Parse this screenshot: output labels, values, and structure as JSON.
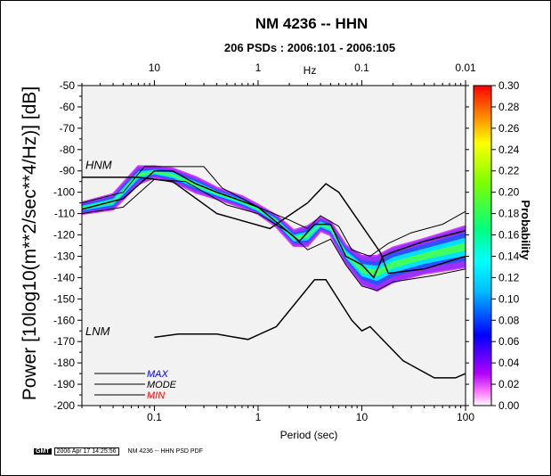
{
  "title": "NM 4236 -- HHN",
  "subtitle": "206 PSDs : 2006:101 - 2006:105",
  "footer": {
    "logo": "GMT",
    "timestamp": "2006 Apr 17 14:25:56",
    "label": "NM 4236 -- HHN PSD PDF"
  },
  "colors": {
    "mode": "#000000",
    "max_label": "#0000ff",
    "min_label": "#ff0000",
    "noise_model": "#808080",
    "background": "#ffffff"
  },
  "chart_data": {
    "type": "heatmap",
    "xlabel": "Period (sec)",
    "ylabel": "Power [10log10(m**2/sec**4/Hz)] [dB]",
    "top_axis_label": "Hz",
    "colorbar_label": "Probability",
    "x_scale": "log",
    "xlim": [
      0.02,
      100
    ],
    "ylim": [
      -200,
      -50
    ],
    "x_ticks": [
      {
        "v": 0.1,
        "label": "0.1"
      },
      {
        "v": 1,
        "label": "1"
      },
      {
        "v": 10,
        "label": "10"
      },
      {
        "v": 100,
        "label": "100"
      }
    ],
    "y_ticks": [
      -50,
      -60,
      -70,
      -80,
      -90,
      -100,
      -110,
      -120,
      -130,
      -140,
      -150,
      -160,
      -170,
      -180,
      -190,
      -200
    ],
    "top_ticks": [
      {
        "period": 0.1,
        "label": "10"
      },
      {
        "period": 1,
        "label": "1"
      },
      {
        "period": 10,
        "label": "0.1"
      },
      {
        "period": 100,
        "label": "0.01"
      }
    ],
    "colorbar_ticks": [
      0.0,
      0.02,
      0.04,
      0.06,
      0.08,
      0.1,
      0.12,
      0.14,
      0.16,
      0.18,
      0.2,
      0.22,
      0.24,
      0.26,
      0.28,
      0.3
    ],
    "colorbar_range": [
      0,
      0.3
    ],
    "noise_models": [
      {
        "name": "HNM",
        "points": [
          [
            0.02,
            -93
          ],
          [
            0.07,
            -93
          ],
          [
            0.15,
            -95
          ],
          [
            0.4,
            -110
          ],
          [
            1.3,
            -117
          ],
          [
            3,
            -105
          ],
          [
            4.5,
            -96
          ],
          [
            6,
            -100
          ],
          [
            15,
            -128
          ],
          [
            18,
            -138
          ],
          [
            40,
            -136
          ],
          [
            100,
            -130
          ]
        ]
      },
      {
        "name": "LNM",
        "points": [
          [
            0.1,
            -168
          ],
          [
            0.17,
            -166.5
          ],
          [
            0.4,
            -166.5
          ],
          [
            0.8,
            -169
          ],
          [
            1.5,
            -163
          ],
          [
            3.5,
            -141
          ],
          [
            4.5,
            -141
          ],
          [
            8,
            -160
          ],
          [
            10,
            -165
          ],
          [
            12,
            -163
          ],
          [
            25,
            -179
          ],
          [
            50,
            -187
          ],
          [
            80,
            -187
          ],
          [
            100,
            -185
          ]
        ]
      }
    ],
    "series": [
      {
        "name": "MAX",
        "points": [
          [
            0.02,
            -105
          ],
          [
            0.05,
            -100
          ],
          [
            0.08,
            -88
          ],
          [
            0.12,
            -88
          ],
          [
            0.3,
            -88
          ],
          [
            0.45,
            -98
          ],
          [
            1,
            -107
          ],
          [
            2,
            -113
          ],
          [
            3,
            -117
          ],
          [
            4,
            -111
          ],
          [
            6,
            -116
          ],
          [
            8,
            -127
          ],
          [
            12,
            -130
          ],
          [
            18,
            -124
          ],
          [
            30,
            -119
          ],
          [
            60,
            -115
          ],
          [
            100,
            -109
          ]
        ]
      },
      {
        "name": "MODE",
        "points": [
          [
            0.02,
            -108
          ],
          [
            0.05,
            -103
          ],
          [
            0.1,
            -90
          ],
          [
            0.15,
            -90
          ],
          [
            0.25,
            -96
          ],
          [
            0.4,
            -100
          ],
          [
            0.6,
            -103
          ],
          [
            1,
            -107
          ],
          [
            1.5,
            -114
          ],
          [
            2.5,
            -123
          ],
          [
            3.5,
            -115
          ],
          [
            5,
            -115
          ],
          [
            7,
            -130
          ],
          [
            10,
            -134
          ],
          [
            13,
            -140
          ],
          [
            16,
            -130
          ],
          [
            20,
            -128
          ],
          [
            40,
            -123
          ],
          [
            100,
            -118
          ]
        ]
      },
      {
        "name": "MIN",
        "points": [
          [
            0.02,
            -110
          ],
          [
            0.05,
            -107
          ],
          [
            0.1,
            -94
          ],
          [
            0.2,
            -95
          ],
          [
            0.5,
            -106
          ],
          [
            1,
            -110
          ],
          [
            2,
            -119
          ],
          [
            3,
            -127
          ],
          [
            5,
            -122
          ],
          [
            7,
            -134
          ],
          [
            10,
            -144
          ],
          [
            14,
            -146
          ],
          [
            20,
            -142
          ],
          [
            50,
            -139
          ],
          [
            100,
            -136
          ]
        ]
      }
    ],
    "density_band": [
      [
        0.02,
        -110,
        -105
      ],
      [
        0.04,
        -108,
        -101
      ],
      [
        0.07,
        -96,
        -88
      ],
      [
        0.1,
        -93,
        -88
      ],
      [
        0.15,
        -95,
        -89
      ],
      [
        0.25,
        -100,
        -93
      ],
      [
        0.4,
        -103,
        -98
      ],
      [
        0.7,
        -107,
        -102
      ],
      [
        1,
        -110,
        -106
      ],
      [
        1.5,
        -116,
        -111
      ],
      [
        2.2,
        -125,
        -118
      ],
      [
        3,
        -125,
        -116
      ],
      [
        4,
        -118,
        -112
      ],
      [
        5,
        -120,
        -114
      ],
      [
        7,
        -133,
        -125
      ],
      [
        10,
        -143,
        -130
      ],
      [
        14,
        -146,
        -130
      ],
      [
        20,
        -142,
        -126
      ],
      [
        40,
        -138,
        -122
      ],
      [
        100,
        -135,
        -116
      ]
    ],
    "legend": [
      {
        "label": "MAX",
        "color": "#0000ff"
      },
      {
        "label": "MODE",
        "color": "#000000"
      },
      {
        "label": "MIN",
        "color": "#ff0000"
      }
    ],
    "legend_position": "bottom-left",
    "grid": false
  }
}
